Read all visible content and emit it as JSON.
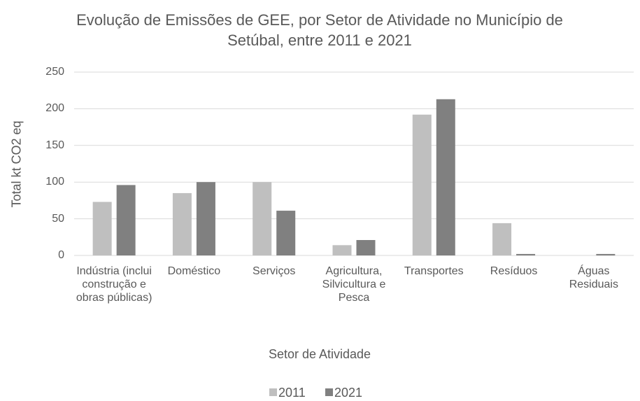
{
  "chart_data": {
    "type": "bar",
    "title": "Evolução de Emissões de GEE, por Setor de Atividade no Município de Setúbal, entre 2011 e 2021",
    "x_label": "Setor de Atividade",
    "y_label": "Total kt CO2 eq",
    "categories": [
      "Indústria (inclui construção e obras públicas)",
      "Doméstico",
      "Serviços",
      "Agricultura, Silvicultura e Pesca",
      "Transportes",
      "Resíduos",
      "Águas Residuais"
    ],
    "series": [
      {
        "name": "2011",
        "color": "#bfbfbf",
        "values": [
          73,
          85,
          100,
          14,
          192,
          44,
          0
        ]
      },
      {
        "name": "2021",
        "color": "#808080",
        "values": [
          96,
          100,
          61,
          21,
          213,
          2,
          2
        ]
      }
    ],
    "ylim": [
      0,
      250
    ],
    "yticks": [
      0,
      50,
      100,
      150,
      200,
      250
    ],
    "grid": true,
    "legend": "bottom"
  }
}
